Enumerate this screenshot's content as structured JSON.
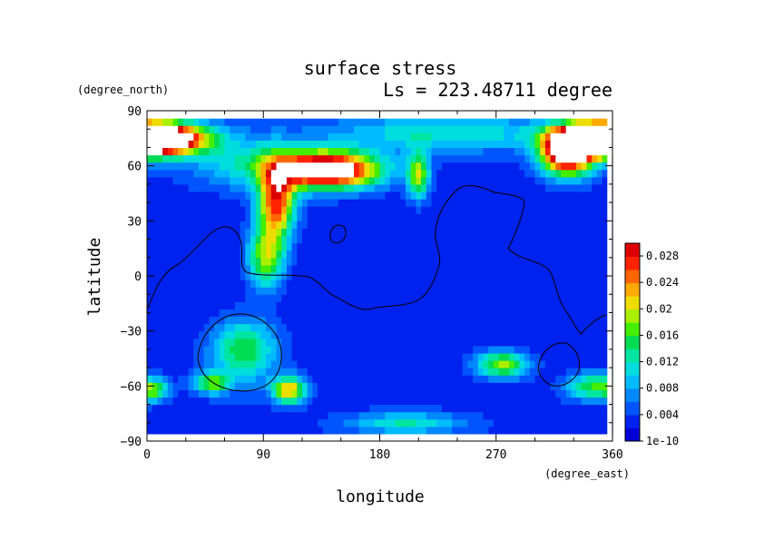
{
  "chart_data": {
    "type": "heatmap",
    "title": "surface stress",
    "subtitle": "Ls = 223.48711 degree",
    "xlabel": "longitude",
    "ylabel": "latitude",
    "xunit": "(degree_east)",
    "yunit": "(degree_north)",
    "xlim": [
      0,
      360
    ],
    "ylim": [
      -90,
      90
    ],
    "xticks": [
      "0",
      "90",
      "180",
      "270",
      "360"
    ],
    "yticks": [
      "90",
      "60",
      "30",
      "0",
      "−30",
      "−60",
      "−90"
    ],
    "colorbar": {
      "labels": [
        "0.028",
        "0.024",
        "0.02",
        "0.016",
        "0.012",
        "0.008",
        "0.004",
        "1e-10"
      ],
      "colors": [
        "#0000d6",
        "#0022ee",
        "#0055ff",
        "#0088ff",
        "#00bbff",
        "#00dddd",
        "#00e6a0",
        "#00dd55",
        "#44ee00",
        "#aaee00",
        "#eedd00",
        "#ffaa00",
        "#ff6600",
        "#ff2200",
        "#dd0000"
      ],
      "min": 0,
      "max": 0.03,
      "over_color": "#ffffff"
    },
    "features": [
      {
        "lon": 12,
        "lat": 75,
        "value": 0.034,
        "sx": 25,
        "sy": 6
      },
      {
        "lon": 345,
        "lat": 75,
        "value": 0.034,
        "sx": 22,
        "sy": 6
      },
      {
        "lon": 325,
        "lat": 66,
        "value": 0.031,
        "sx": 14,
        "sy": 8
      },
      {
        "lon": 140,
        "lat": 58,
        "value": 0.034,
        "sx": 28,
        "sy": 7
      },
      {
        "lon": 100,
        "lat": 40,
        "value": 0.024,
        "sx": 10,
        "sy": 14
      },
      {
        "lon": 92,
        "lat": 10,
        "value": 0.016,
        "sx": 10,
        "sy": 12
      },
      {
        "lon": 210,
        "lat": 55,
        "value": 0.016,
        "sx": 6,
        "sy": 9
      },
      {
        "lon": 75,
        "lat": -40,
        "value": 0.013,
        "sx": 18,
        "sy": 12
      },
      {
        "lon": 110,
        "lat": -62,
        "value": 0.02,
        "sx": 9,
        "sy": 5
      },
      {
        "lon": 275,
        "lat": -48,
        "value": 0.016,
        "sx": 14,
        "sy": 5
      },
      {
        "lon": 345,
        "lat": -60,
        "value": 0.013,
        "sx": 14,
        "sy": 5
      },
      {
        "lon": 5,
        "lat": -62,
        "value": 0.012,
        "sx": 8,
        "sy": 4
      },
      {
        "lon": 50,
        "lat": -58,
        "value": 0.014,
        "sx": 10,
        "sy": 4
      },
      {
        "lon": 200,
        "lat": -80,
        "value": 0.009,
        "sx": 30,
        "sy": 4
      },
      {
        "lon": 230,
        "lat": 78,
        "value": 0.009,
        "sx": 60,
        "sy": 7
      },
      {
        "lon": 80,
        "lat": 62,
        "value": 0.008,
        "sx": 35,
        "sy": 10
      }
    ]
  }
}
